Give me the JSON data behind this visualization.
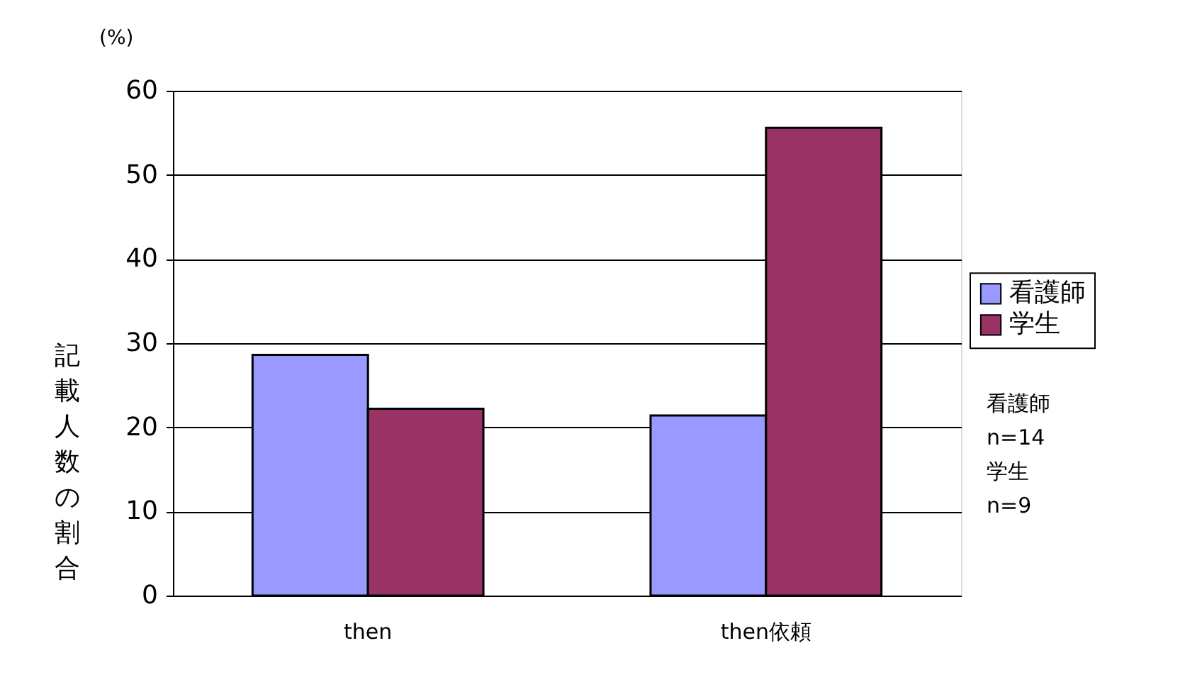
{
  "chart_data": {
    "type": "bar",
    "ylabel": "記載人数の割合",
    "categories": [
      "then",
      "then依頼"
    ],
    "series": [
      {
        "name": "看護師",
        "color": "#9999ff",
        "values": [
          28.6,
          21.4
        ]
      },
      {
        "name": "学生",
        "color": "#993366",
        "values": [
          22.2,
          55.6
        ]
      }
    ],
    "ylim": [
      0,
      60
    ],
    "yticks": [
      0,
      10,
      20,
      30,
      40,
      50,
      60
    ],
    "grid": "y",
    "legend": "right",
    "annotations": [
      "(%)",
      "看護師\n  n=14\n学生\n  n=9"
    ]
  }
}
